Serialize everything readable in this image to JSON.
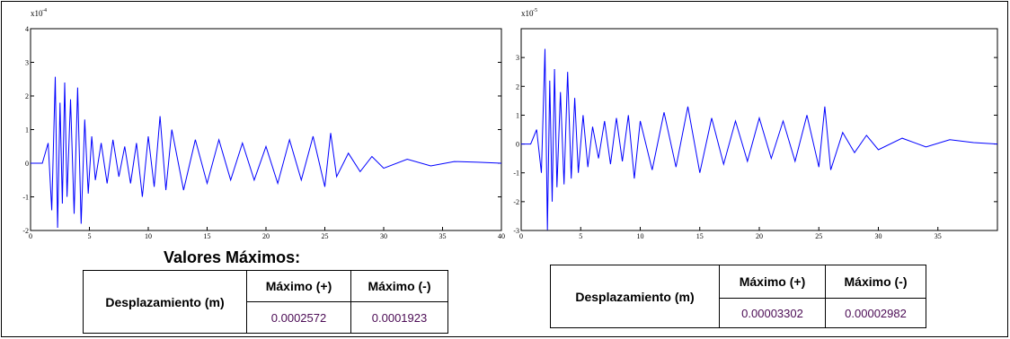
{
  "title": "Valores Máximos:",
  "chart_data": [
    {
      "type": "line",
      "exponent_base": "x10",
      "exponent_power": "-4",
      "xlim": [
        0,
        40
      ],
      "ylim": [
        -2,
        4
      ],
      "xticks": [
        0,
        5,
        10,
        15,
        20,
        25,
        30,
        35,
        40
      ],
      "xtick_labels": [
        "0",
        "5",
        "10",
        "15",
        "20",
        "25",
        "30",
        "35",
        "40"
      ],
      "yticks": [
        -2,
        -1,
        0,
        1,
        2,
        3,
        4
      ],
      "ytick_labels": [
        "-2",
        "-1",
        "0",
        "1",
        "2",
        "3",
        "4"
      ],
      "color": "#0000ff",
      "series": [
        {
          "x": [
            0,
            1,
            1.5,
            1.8,
            2.1,
            2.3,
            2.5,
            2.7,
            2.9,
            3.1,
            3.4,
            3.7,
            4.0,
            4.3,
            4.6,
            4.9,
            5.2,
            5.5,
            6,
            6.5,
            7,
            7.5,
            8,
            8.5,
            9,
            9.5,
            10,
            10.5,
            11,
            11.5,
            12,
            13,
            14,
            15,
            16,
            17,
            18,
            19,
            20,
            21,
            22,
            23,
            24,
            25,
            25.5,
            26,
            27,
            28,
            29,
            30,
            32,
            34,
            36,
            38,
            40
          ],
          "y": [
            0,
            0,
            0.6,
            -1.4,
            2.57,
            -1.92,
            1.8,
            -1.2,
            2.4,
            -1.0,
            1.9,
            -1.5,
            2.25,
            -1.8,
            1.3,
            -0.9,
            0.8,
            -0.5,
            0.6,
            -0.6,
            0.7,
            -0.4,
            0.5,
            -0.6,
            0.6,
            -1.0,
            0.8,
            -0.7,
            1.4,
            -0.8,
            1.0,
            -0.8,
            0.7,
            -0.6,
            0.7,
            -0.5,
            0.6,
            -0.5,
            0.5,
            -0.6,
            0.7,
            -0.5,
            0.8,
            -0.7,
            0.9,
            -0.4,
            0.3,
            -0.25,
            0.2,
            -0.15,
            0.12,
            -0.08,
            0.05,
            0.03,
            0
          ]
        }
      ]
    },
    {
      "type": "line",
      "exponent_base": "x10",
      "exponent_power": "-5",
      "xlim": [
        0,
        40
      ],
      "ylim": [
        -3,
        4
      ],
      "xticks": [
        0,
        5,
        10,
        15,
        20,
        25,
        30,
        35,
        40
      ],
      "xtick_labels": [
        "0",
        "5",
        "10",
        "15",
        "20",
        "25",
        "30",
        "35",
        ""
      ],
      "yticks": [
        -3,
        -2,
        -1,
        0,
        1,
        2,
        3
      ],
      "ytick_labels": [
        "-3",
        "-2",
        "-1",
        "0",
        "1",
        "2",
        "3"
      ],
      "color": "#0000ff",
      "series": [
        {
          "x": [
            0,
            0.8,
            1.3,
            1.7,
            2.0,
            2.2,
            2.4,
            2.6,
            2.8,
            3.0,
            3.3,
            3.6,
            3.9,
            4.2,
            4.5,
            4.8,
            5.2,
            5.6,
            6,
            6.5,
            7,
            7.5,
            8,
            8.5,
            9,
            9.5,
            10,
            11,
            12,
            13,
            14,
            15,
            16,
            17,
            18,
            19,
            20,
            21,
            22,
            23,
            24,
            25,
            25.5,
            26,
            27,
            28,
            29,
            30,
            32,
            34,
            36,
            38,
            40
          ],
          "y": [
            0,
            0,
            0.5,
            -1.0,
            3.3,
            -2.98,
            2.2,
            -2.0,
            2.6,
            -1.5,
            1.8,
            -1.4,
            2.5,
            -1.2,
            1.6,
            -1.0,
            1.0,
            -0.8,
            0.6,
            -0.5,
            0.8,
            -0.7,
            0.9,
            -0.6,
            1.0,
            -1.2,
            0.8,
            -0.9,
            1.1,
            -0.8,
            1.3,
            -1.0,
            0.9,
            -0.7,
            0.8,
            -0.6,
            0.9,
            -0.5,
            0.8,
            -0.6,
            1.0,
            -0.8,
            1.3,
            -0.9,
            0.4,
            -0.3,
            0.3,
            -0.2,
            0.2,
            -0.1,
            0.15,
            0.05,
            0
          ]
        }
      ]
    }
  ],
  "tables": [
    {
      "header": [
        "Desplazamiento (m)",
        "Máximo (+)",
        "Máximo (-)"
      ],
      "values": [
        "0.0002572",
        "0.0001923"
      ]
    },
    {
      "header": [
        "Desplazamiento (m)",
        "Máximo (+)",
        "Máximo (-)"
      ],
      "values": [
        "0.00003302",
        "0.00002982"
      ]
    }
  ]
}
